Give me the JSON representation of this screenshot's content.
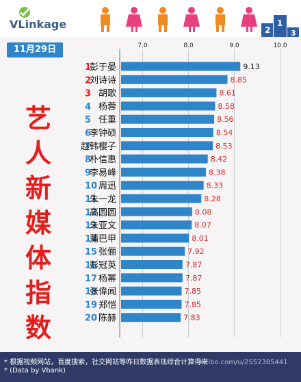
{
  "header": {
    "logo": "VLinkage"
  },
  "badge": {
    "date": "11月29日"
  },
  "title": "艺人新媒体指数",
  "chart_data": {
    "type": "bar",
    "orientation": "horizontal",
    "xlim": [
      6.5,
      10.2
    ],
    "xticks": [
      7.0,
      8.0,
      9.0,
      10.0
    ],
    "xtick_labels": [
      "7.0",
      "8.0",
      "9.0",
      "10.0"
    ],
    "grid": true,
    "ranks": [
      "1",
      "2",
      "3",
      "4",
      "5",
      "6",
      "7",
      "8",
      "9",
      "10",
      "11",
      "12",
      "13",
      "14",
      "15",
      "16",
      "17",
      "18",
      "19",
      "20"
    ],
    "categories": [
      "彭于晏",
      "刘诗诗",
      "胡歌",
      "杨蓉",
      "任重",
      "李钟硕",
      "赵韩樱子",
      "朴信惠",
      "李易峰",
      "周迅",
      "朱一龙",
      "高圆圆",
      "朱亚文",
      "蒲巴甲",
      "张俪",
      "彭冠英",
      "杨幂",
      "张偉闻",
      "郑恺",
      "陈赫"
    ],
    "values": [
      9.13,
      8.85,
      8.61,
      8.58,
      8.56,
      8.54,
      8.53,
      8.42,
      8.38,
      8.33,
      8.28,
      8.08,
      8.07,
      8.01,
      7.92,
      7.87,
      7.87,
      7.85,
      7.85,
      7.83
    ],
    "value_labels": [
      "9.13",
      "8.85",
      "8.61",
      "8.58",
      "8.56",
      "8.54",
      "8.53",
      "8.42",
      "8.38",
      "8.33",
      "8.28",
      "8.08",
      "8.07",
      "8.01",
      "7.92",
      "7.87",
      "7.87",
      "7.85",
      "7.85",
      "7.83"
    ],
    "colors": {
      "bar": "#2e86c9",
      "rank_top3": "#e41d1d",
      "rank_other": "#2e86c9",
      "value_label": "#d62828",
      "top_value_label": "#111111"
    }
  },
  "footer": {
    "note1": "* 根据视频网站，百度搜索，社交网站等昨日数据表现综合计算得来",
    "note2": "* (Data by Vbank)",
    "watermark": "weibo.com/u/2552385441"
  }
}
